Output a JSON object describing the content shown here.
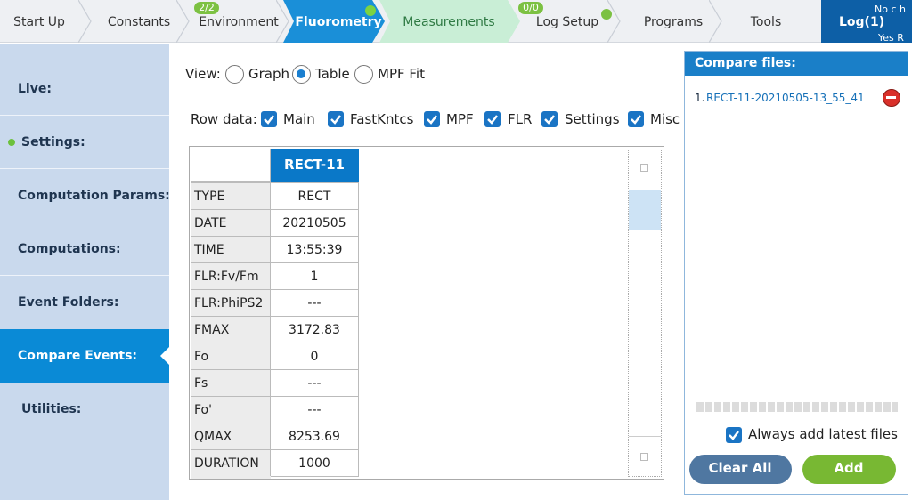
{
  "nav": {
    "tabs": [
      {
        "label": "Start Up"
      },
      {
        "label": "Constants"
      },
      {
        "label": "Environment",
        "badge": "2/2"
      },
      {
        "label": "Fluorometry"
      },
      {
        "label": "Measurements"
      },
      {
        "label": "Log Setup",
        "badge": "0/0"
      },
      {
        "label": "Programs"
      },
      {
        "label": "Tools"
      }
    ],
    "log": {
      "label": "Log(1)",
      "line1": "No c h",
      "line2": "Yes R"
    }
  },
  "sidebar": {
    "items": [
      "Live:",
      "Settings:",
      "Computation Params:",
      "Computations:",
      "Event Folders:",
      "Compare Events:",
      "Utilities:"
    ]
  },
  "view": {
    "label": "View:",
    "options": [
      "Graph",
      "Table",
      "MPF Fit"
    ]
  },
  "row_data": {
    "label": "Row data:",
    "options": [
      "Main",
      "FastKntcs",
      "MPF",
      "FLR",
      "Settings",
      "Misc"
    ]
  },
  "table": {
    "header": "RECT-11",
    "rows": [
      [
        "TYPE",
        "RECT"
      ],
      [
        "DATE",
        "20210505"
      ],
      [
        "TIME",
        "13:55:39"
      ],
      [
        "FLR:Fv/Fm",
        "1"
      ],
      [
        "FLR:PhiPS2",
        "---"
      ],
      [
        "FMAX",
        "3172.83"
      ],
      [
        "Fo",
        "0"
      ],
      [
        "Fs",
        "---"
      ],
      [
        "Fo'",
        "---"
      ],
      [
        "QMAX",
        "8253.69"
      ],
      [
        "DURATION",
        "1000"
      ]
    ]
  },
  "compare": {
    "title": "Compare files:",
    "files": [
      {
        "number": "1.",
        "name": "RECT-11-20210505-13_55_41"
      }
    ],
    "always": "Always add latest files",
    "clear": "Clear All",
    "add": "Add"
  }
}
